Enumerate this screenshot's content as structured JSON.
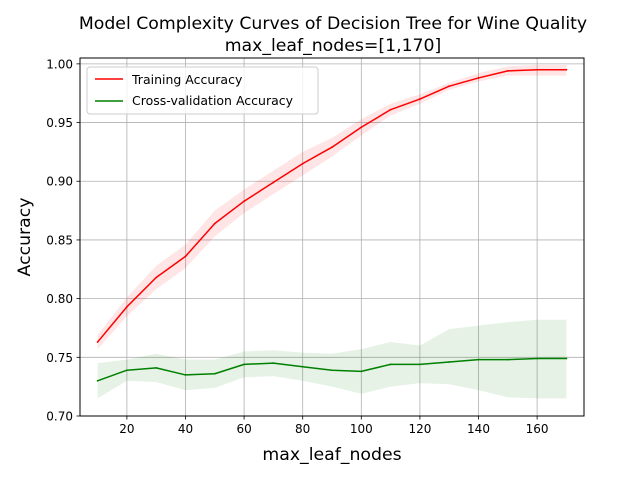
{
  "chart_data": {
    "type": "line",
    "title": "Model Complexity Curves of Decision Tree for Wine Quality",
    "subtitle": "max_leaf_nodes=[1,170]",
    "xlabel": "max_leaf_nodes",
    "ylabel": "Accuracy",
    "xlim": [
      4,
      176
    ],
    "ylim": [
      0.7,
      1.005
    ],
    "xticks": [
      20,
      40,
      60,
      80,
      100,
      120,
      140,
      160
    ],
    "yticks": [
      0.7,
      0.75,
      0.8,
      0.85,
      0.9,
      0.95,
      1.0
    ],
    "grid": true,
    "legend_position": "upper-left",
    "x": [
      10,
      20,
      30,
      40,
      50,
      60,
      70,
      80,
      90,
      100,
      110,
      120,
      130,
      140,
      150,
      160,
      170
    ],
    "series": [
      {
        "name": "Training Accuracy",
        "color": "#ff0000",
        "band_color": "#ff0000",
        "values": [
          0.763,
          0.793,
          0.818,
          0.836,
          0.864,
          0.883,
          0.899,
          0.915,
          0.929,
          0.946,
          0.961,
          0.97,
          0.981,
          0.988,
          0.994,
          0.995,
          0.995
        ],
        "band_lower": [
          0.757,
          0.785,
          0.808,
          0.826,
          0.853,
          0.873,
          0.889,
          0.905,
          0.921,
          0.939,
          0.956,
          0.966,
          0.978,
          0.985,
          0.99,
          0.99,
          0.99
        ],
        "band_upper": [
          0.769,
          0.801,
          0.828,
          0.846,
          0.875,
          0.893,
          0.909,
          0.925,
          0.937,
          0.953,
          0.966,
          0.974,
          0.984,
          0.992,
          0.998,
          0.999,
          0.999
        ]
      },
      {
        "name": "Cross-validation Accuracy",
        "color": "#008000",
        "band_color": "#008000",
        "values": [
          0.73,
          0.739,
          0.741,
          0.735,
          0.736,
          0.744,
          0.745,
          0.742,
          0.739,
          0.738,
          0.744,
          0.744,
          0.746,
          0.748,
          0.748,
          0.749,
          0.749
        ],
        "band_lower": [
          0.715,
          0.73,
          0.729,
          0.722,
          0.724,
          0.733,
          0.734,
          0.73,
          0.725,
          0.719,
          0.725,
          0.728,
          0.727,
          0.722,
          0.716,
          0.715,
          0.715
        ],
        "band_upper": [
          0.745,
          0.748,
          0.753,
          0.748,
          0.748,
          0.755,
          0.756,
          0.754,
          0.753,
          0.757,
          0.763,
          0.76,
          0.774,
          0.777,
          0.78,
          0.782,
          0.782
        ]
      }
    ]
  }
}
